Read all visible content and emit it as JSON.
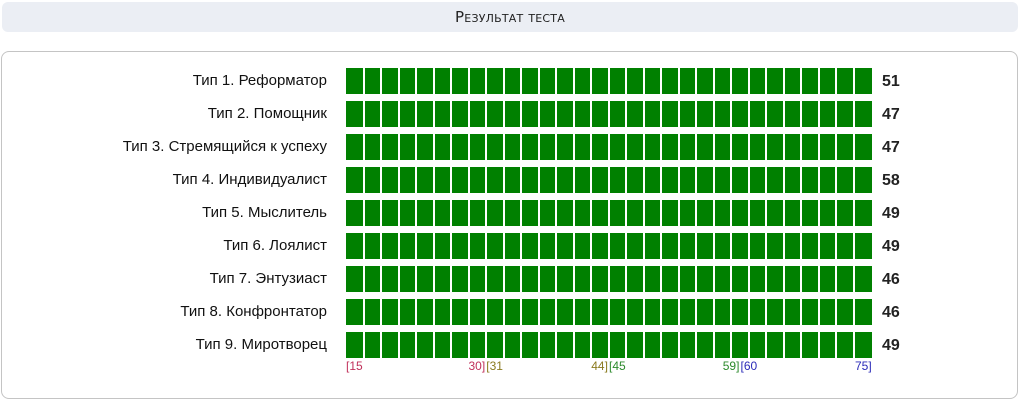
{
  "title": "Результат теста",
  "chart_data": {
    "type": "bar",
    "orientation": "horizontal",
    "categories": [
      "Тип 1. Реформатор",
      "Тип 2. Помощник",
      "Тип 3. Стремящийся к успеху",
      "Тип 4. Индивидуалист",
      "Тип 5. Мыслитель",
      "Тип 6. Лоялист",
      "Тип 7. Энтузиаст",
      "Тип 8. Конфронтатор",
      "Тип 9. Миротворец"
    ],
    "values": [
      51,
      47,
      47,
      58,
      49,
      49,
      46,
      46,
      49
    ],
    "xlim": [
      15,
      75
    ],
    "scale_ranges": [
      {
        "start": "[15",
        "end": "30]",
        "color": "#c0305a"
      },
      {
        "start": "[31",
        "end": "44]",
        "color": "#8a7a1e"
      },
      {
        "start": "[45",
        "end": "59]",
        "color": "#2c8a2c"
      },
      {
        "start": "[60",
        "end": "75]",
        "color": "#2a2ab8"
      }
    ],
    "colors": {
      "bar": "#008000",
      "track": "#f2f2f2"
    }
  }
}
